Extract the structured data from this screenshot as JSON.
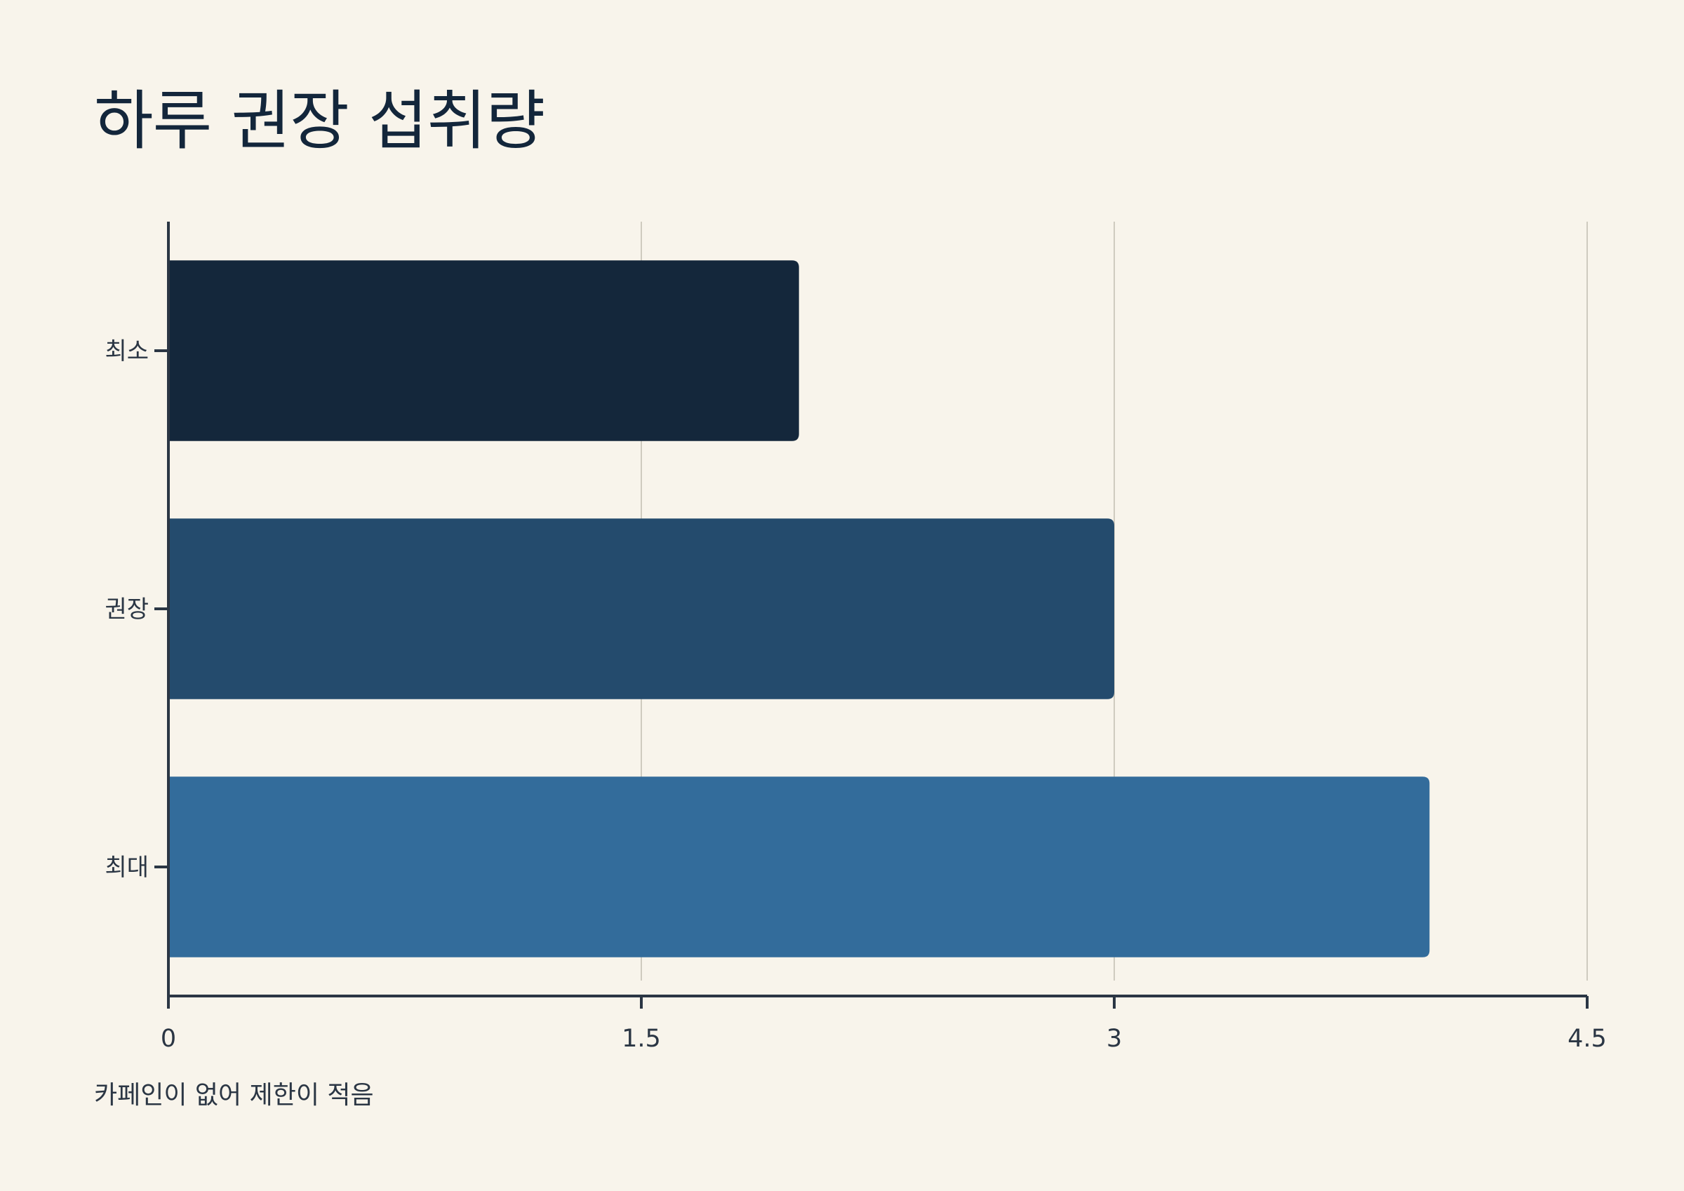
{
  "title": "하루 권장 섭취량",
  "note": "카페인이 없어 제한이 적음",
  "chart_data": {
    "type": "bar",
    "orientation": "horizontal",
    "title": "하루 권장 섭취량",
    "xlabel": "",
    "ylabel": "",
    "categories": [
      "최소",
      "권장",
      "최대"
    ],
    "values": [
      2,
      3,
      4
    ],
    "colors": [
      "#14273b",
      "#244b6d",
      "#336c9b"
    ],
    "xlim": [
      0,
      4.5
    ],
    "xticks": [
      0,
      1.5,
      3,
      4.5
    ],
    "xtick_labels": [
      "0",
      "1.5",
      "3",
      "4.5"
    ],
    "grid": "vertical",
    "legend": "none"
  }
}
